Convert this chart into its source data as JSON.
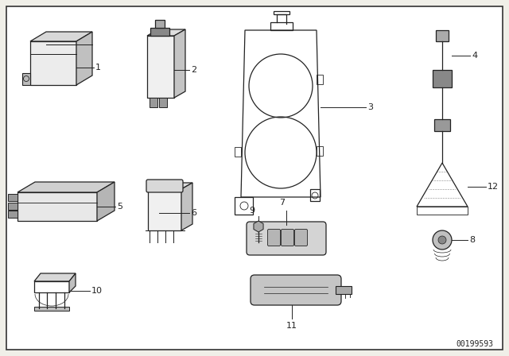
{
  "bg_color": "#ffffff",
  "border_color": "#333333",
  "line_color": "#222222",
  "text_color": "#222222",
  "diagram_id": "00199593",
  "fig_bg": "#f0efe8"
}
